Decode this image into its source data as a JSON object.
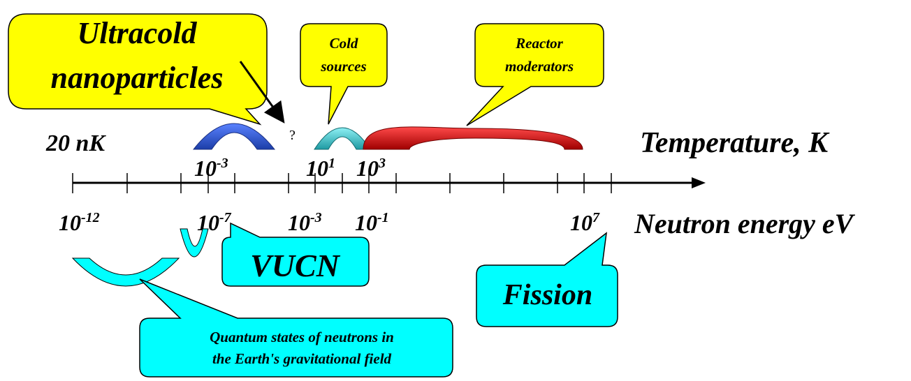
{
  "temperature_axis": {
    "title": "Temperature, K",
    "start_label": "20 nK",
    "tick_labels": [
      {
        "base": "10",
        "exp": "-3"
      },
      {
        "base": "10",
        "exp": "1"
      },
      {
        "base": "10",
        "exp": "3"
      }
    ]
  },
  "energy_axis": {
    "title": "Neutron energy eV",
    "tick_labels": [
      {
        "base": "10",
        "exp": "-12"
      },
      {
        "base": "10",
        "exp": "-7"
      },
      {
        "base": "10",
        "exp": "-3"
      },
      {
        "base": "10",
        "exp": "-1"
      },
      {
        "base": "10",
        "exp": "7"
      }
    ]
  },
  "question_mark": "?",
  "callouts": {
    "ultracold": [
      "Ultracold",
      "nanoparticles"
    ],
    "cold_sources": [
      "Cold",
      "sources"
    ],
    "reactor": [
      "Reactor",
      "moderators"
    ],
    "vucn": "VUCN",
    "fission": "Fission",
    "quantum": [
      "Quantum states of neutrons in",
      "the Earth's gravitational field"
    ]
  },
  "colors": {
    "yellow_callout": "#ffff00",
    "cyan_callout": "#00ffff",
    "blue_arc": "#2952c8",
    "cyan_arc": "#2fb8c0",
    "red_arc": "#d01010"
  }
}
